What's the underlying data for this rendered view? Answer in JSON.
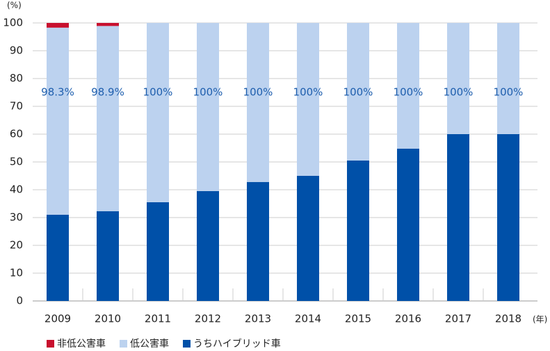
{
  "chart_data": {
    "type": "stacked_bar",
    "y_unit": "(%)",
    "x_unit": "(年)",
    "categories": [
      "2009",
      "2010",
      "2011",
      "2012",
      "2013",
      "2014",
      "2015",
      "2016",
      "2017",
      "2018"
    ],
    "series": [
      {
        "name": "非低公害車",
        "color": "#c8102e",
        "values": [
          1.7,
          1.1,
          0,
          0,
          0,
          0,
          0,
          0,
          0,
          0
        ]
      },
      {
        "name": "低公害車",
        "color": "#bcd2ef",
        "values": [
          67.3,
          66.6,
          64.5,
          60.5,
          57.2,
          55,
          49.5,
          45.2,
          40,
          40
        ]
      },
      {
        "name": "うちハイブリッド車",
        "color": "#0050a8",
        "values": [
          31,
          32.3,
          35.5,
          39.5,
          42.8,
          45,
          50.5,
          54.8,
          60,
          60
        ]
      }
    ],
    "annotations": {
      "values": [
        98.3,
        98.9,
        100,
        100,
        100,
        100,
        100,
        100,
        100,
        100
      ],
      "labels": [
        "98.3%",
        "98.9%",
        "100%",
        "100%",
        "100%",
        "100%",
        "100%",
        "100%",
        "100%",
        "100%"
      ]
    },
    "ylim": [
      0,
      100
    ],
    "yticks": [
      0,
      10,
      20,
      30,
      40,
      50,
      60,
      70,
      80,
      90,
      100
    ],
    "grid": true
  }
}
